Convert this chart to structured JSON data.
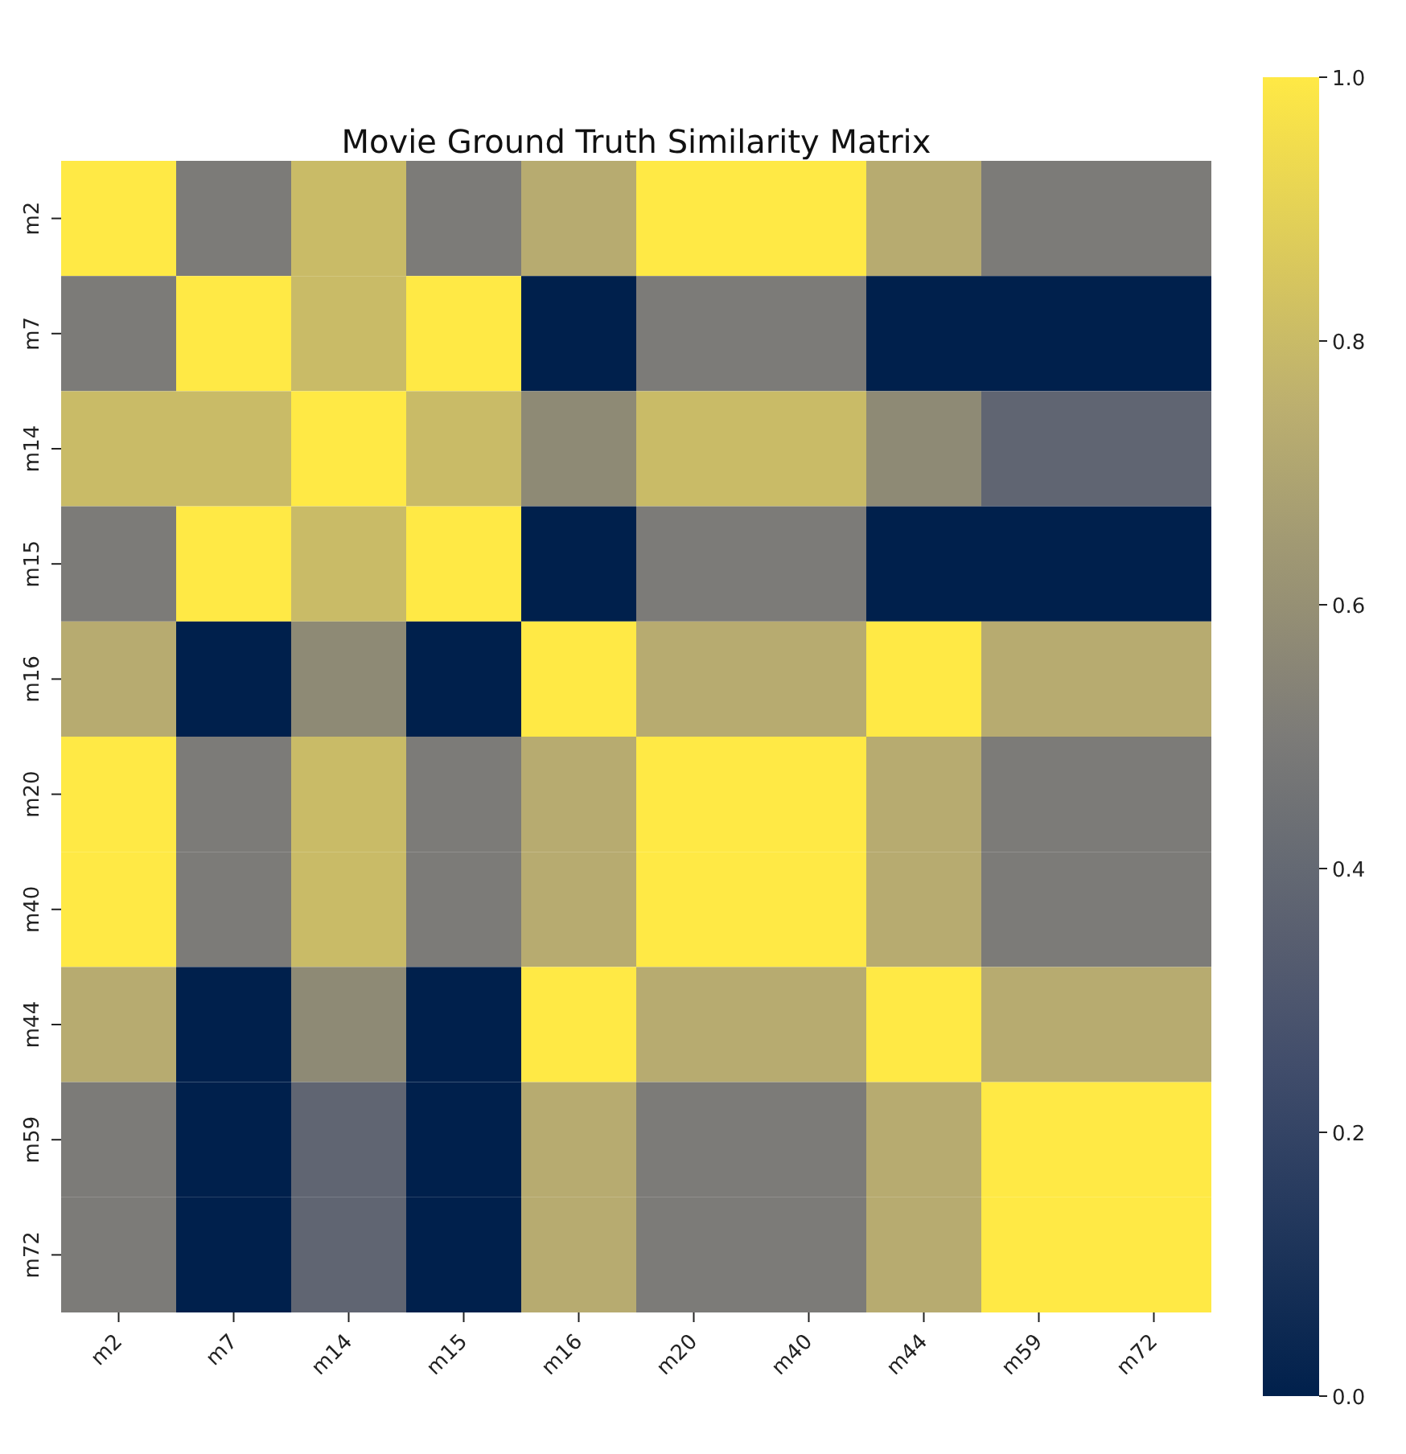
{
  "chart_data": {
    "type": "heatmap",
    "title": "Movie Ground Truth Similarity Matrix",
    "categories": [
      "m2",
      "m7",
      "m14",
      "m15",
      "m16",
      "m20",
      "m40",
      "m44",
      "m59",
      "m72"
    ],
    "y_categories": [
      "m2",
      "m7",
      "m14",
      "m15",
      "m16",
      "m20",
      "m40",
      "m44",
      "m59",
      "m72"
    ],
    "cells": [
      [
        1,
        0.5,
        0.8,
        0.5,
        0.73,
        1,
        1,
        0.73,
        0.5,
        0.5
      ],
      [
        0.5,
        1,
        0.8,
        1,
        0,
        0.5,
        0.5,
        0,
        0,
        0
      ],
      [
        0.8,
        0.8,
        1,
        0.8,
        0.57,
        0.8,
        0.8,
        0.57,
        0.38,
        0.38
      ],
      [
        0.5,
        1,
        0.8,
        1,
        0,
        0.5,
        0.5,
        0,
        0,
        0
      ],
      [
        0.73,
        0,
        0.57,
        0,
        1,
        0.73,
        0.73,
        1,
        0.73,
        0.73
      ],
      [
        1,
        0.5,
        0.8,
        0.5,
        0.73,
        1,
        1,
        0.73,
        0.5,
        0.5
      ],
      [
        1,
        0.5,
        0.8,
        0.5,
        0.73,
        1,
        1,
        0.73,
        0.5,
        0.5
      ],
      [
        0.73,
        0,
        0.57,
        0,
        1,
        0.73,
        0.73,
        1,
        0.73,
        0.73
      ],
      [
        0.5,
        0,
        0.38,
        0,
        0.73,
        0.5,
        0.5,
        0.73,
        1,
        1
      ],
      [
        0.5,
        0,
        0.38,
        0,
        0.73,
        0.5,
        0.5,
        0.73,
        1,
        1
      ]
    ],
    "clim": [
      0,
      1
    ],
    "cticks": [
      {
        "value": 0,
        "label": "0.0"
      },
      0.2,
      0.4,
      0.6,
      0.8,
      {
        "value": 1,
        "label": "1.0"
      }
    ]
  }
}
